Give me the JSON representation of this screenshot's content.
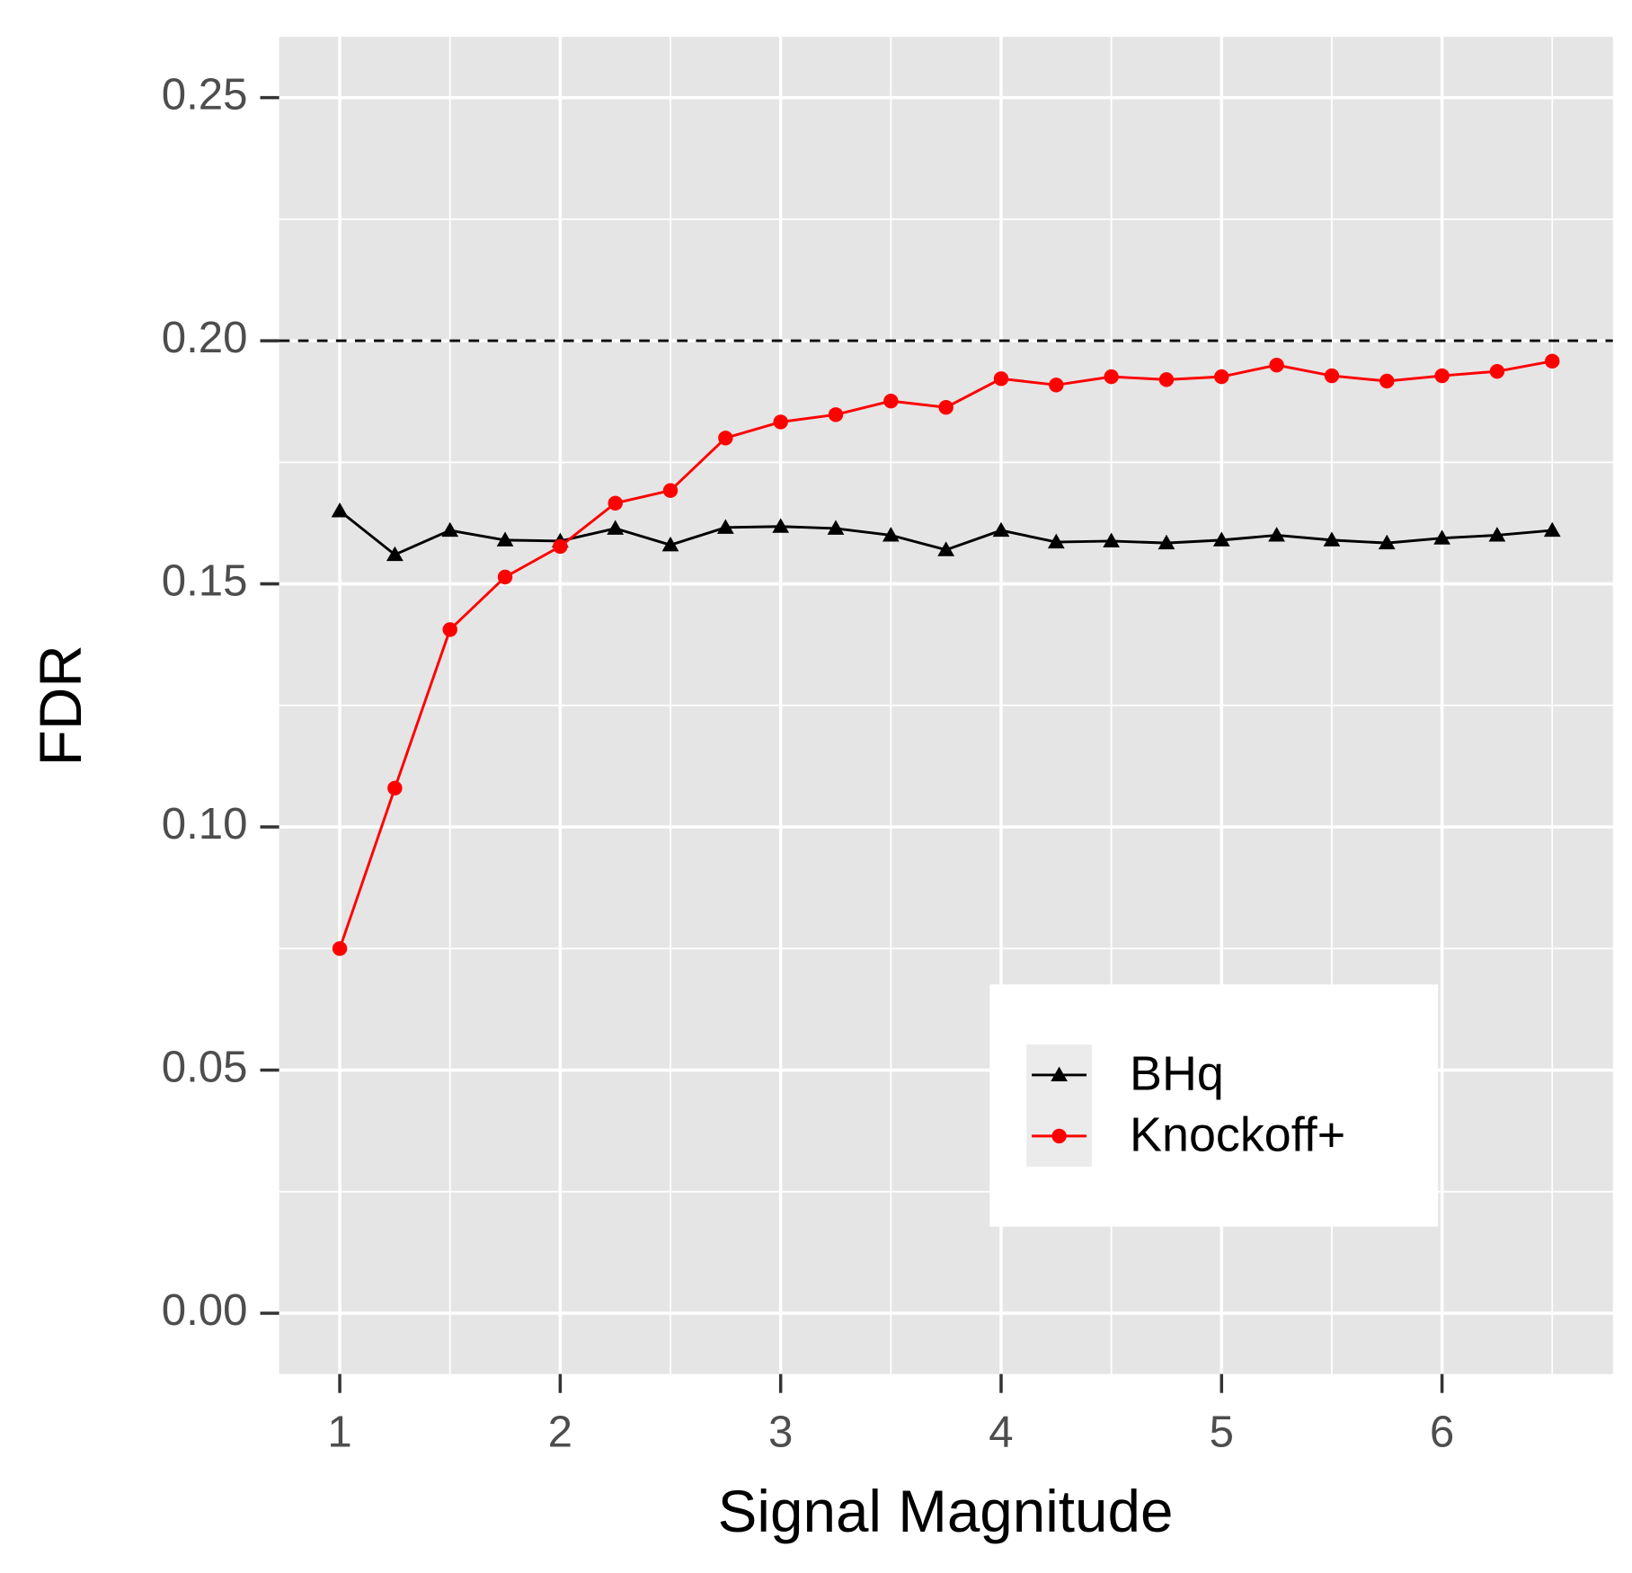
{
  "chart_data": {
    "type": "line",
    "x_label": "Signal Magnitude",
    "y_label": "FDR",
    "x": [
      1,
      1.25,
      1.5,
      1.75,
      2,
      2.25,
      2.5,
      2.75,
      3,
      3.25,
      3.5,
      3.75,
      4,
      4.25,
      4.5,
      4.75,
      5,
      5.25,
      5.5,
      5.75,
      6,
      6.25,
      6.5
    ],
    "series": [
      {
        "name": "BHq",
        "color": "#000000",
        "marker": "triangle",
        "values": [
          0.165,
          0.156,
          0.161,
          0.159,
          0.1588,
          0.1614,
          0.158,
          0.1616,
          0.1618,
          0.1614,
          0.16,
          0.157,
          0.161,
          0.1586,
          0.1588,
          0.1584,
          0.159,
          0.16,
          0.159,
          0.1584,
          0.1594,
          0.16,
          0.161
        ]
      },
      {
        "name": "Knockoff+",
        "color": "#ff0000",
        "marker": "circle",
        "values": [
          0.075,
          0.108,
          0.1406,
          0.1514,
          0.1577,
          0.1666,
          0.1692,
          0.18,
          0.1833,
          0.1848,
          0.1876,
          0.1863,
          0.1922,
          0.1909,
          0.1926,
          0.192,
          0.1926,
          0.195,
          0.1928,
          0.1917,
          0.1928,
          0.1937,
          0.1958
        ]
      }
    ],
    "xlim": [
      0.725,
      6.775
    ],
    "ylim": [
      -0.0125,
      0.2625
    ],
    "xticks": [
      1,
      2,
      3,
      4,
      5,
      6
    ],
    "yticks": [
      {
        "value": 0,
        "label": "0.00"
      },
      {
        "value": 0.05,
        "label": "0.05"
      },
      {
        "value": 0.1,
        "label": "0.10"
      },
      {
        "value": 0.15,
        "label": "0.15"
      },
      {
        "value": 0.2,
        "label": "0.20"
      },
      {
        "value": 0.25,
        "label": "0.25"
      }
    ],
    "hline": 0.2,
    "grid": true,
    "legend_position": "bottom-right"
  }
}
